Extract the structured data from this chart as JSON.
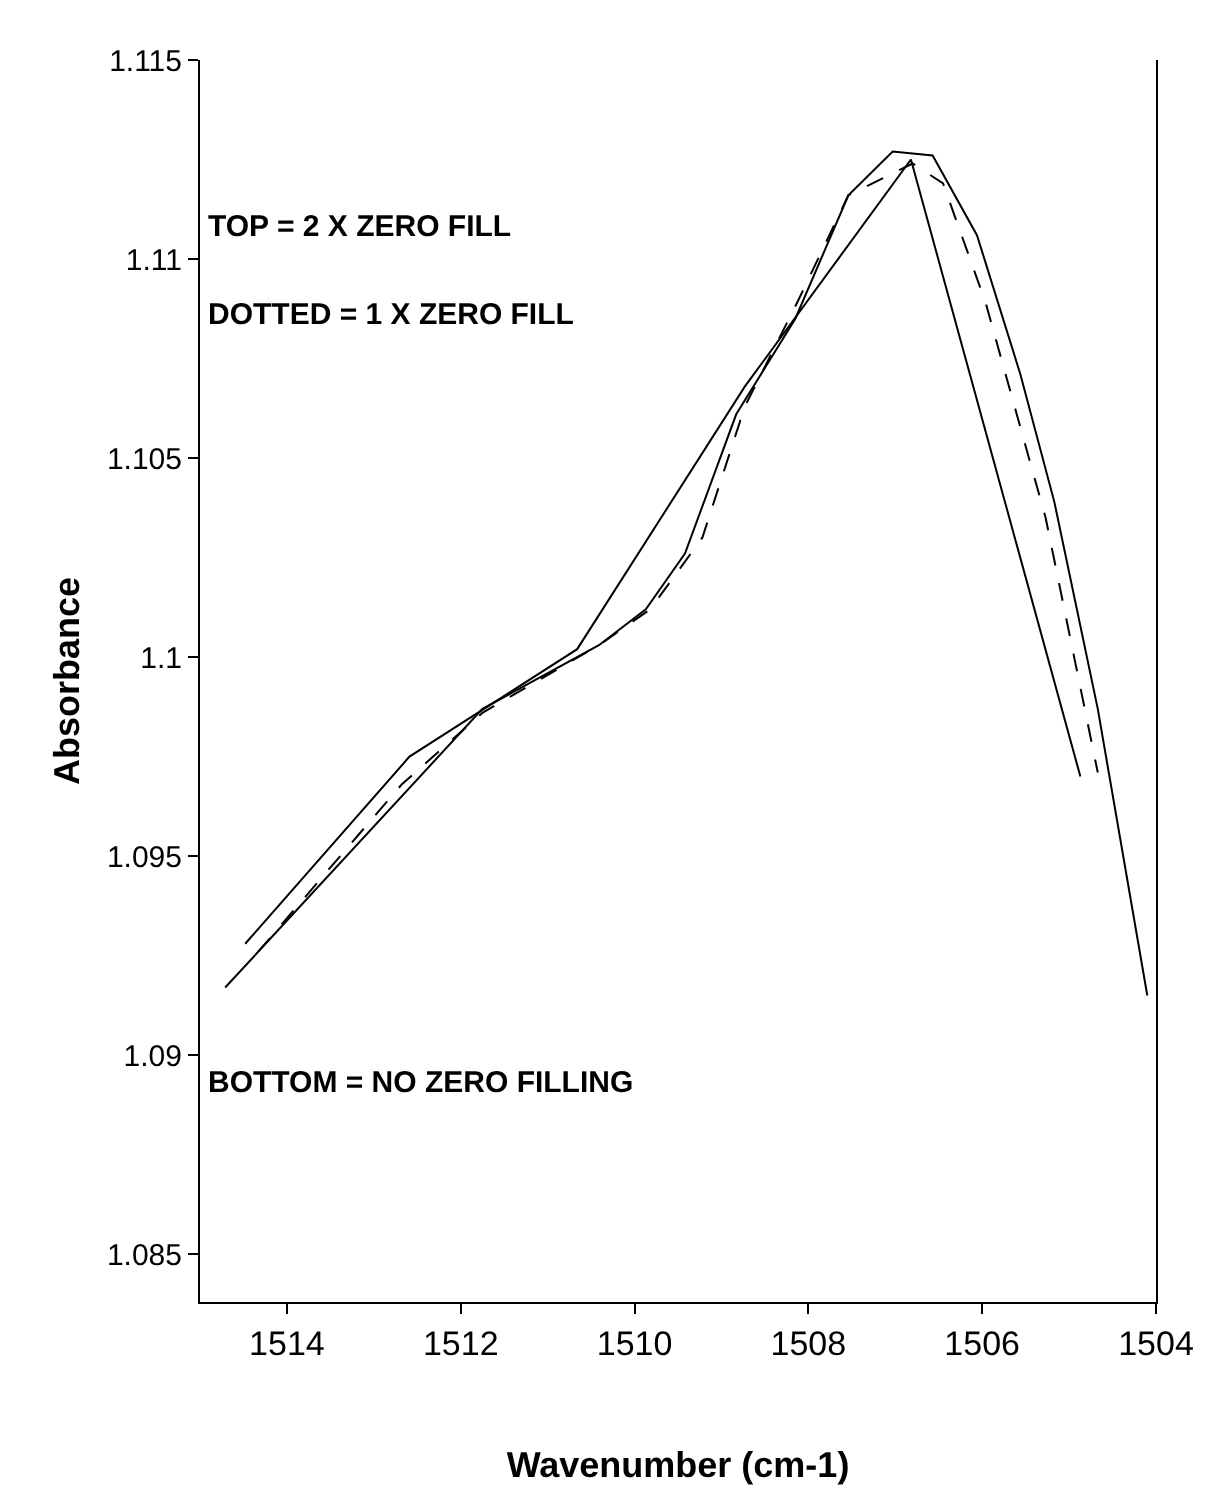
{
  "chart_data": {
    "type": "line",
    "xlabel": "Wavenumber (cm-1)",
    "ylabel": "Absorbance",
    "annotations": [
      "TOP = 2 X ZERO FILL",
      "DOTTED = 1 X ZERO FILL",
      "BOTTOM = NO ZERO FILLING"
    ],
    "series": [
      {
        "color": "#000000",
        "line_style": "solid",
        "x": [
          1514.71,
          1511.75,
          1510.41,
          1509.87,
          1509.42,
          1508.83,
          1508.15,
          1507.54,
          1507.03,
          1506.57,
          1506.06,
          1505.56,
          1505.17,
          1504.67,
          1504.1
        ],
        "values": [
          1.0917,
          1.0987,
          1.1003,
          1.1012,
          1.1026,
          1.1061,
          1.1085,
          1.1116,
          1.1127,
          1.1126,
          1.1106,
          1.1071,
          1.1039,
          1.0987,
          1.0915
        ]
      },
      {
        "color": "#000000",
        "line_style": "dashed",
        "x": [
          1514.33,
          1512.68,
          1511.75,
          1510.41,
          1509.82,
          1509.22,
          1508.73,
          1508.13,
          1507.54,
          1506.8,
          1506.45,
          1505.96,
          1505.27,
          1504.67
        ],
        "values": [
          1.0926,
          1.0968,
          1.0986,
          1.1003,
          1.1012,
          1.103,
          1.1063,
          1.1089,
          1.1116,
          1.1124,
          1.1119,
          1.1089,
          1.1035,
          1.0971
        ]
      },
      {
        "color": "#000000",
        "line_style": "solid",
        "x": [
          1514.48,
          1512.59,
          1510.66,
          1508.73,
          1506.82,
          1504.87
        ],
        "values": [
          1.0928,
          1.0975,
          1.1002,
          1.1068,
          1.1125,
          1.097
        ]
      }
    ],
    "xlim": [
      1515,
      1504
    ],
    "xticks": [
      1514,
      1512,
      1510,
      1508,
      1506,
      1504
    ],
    "ylim": [
      1.0838,
      1.115
    ],
    "yticks": [
      1.085,
      1.09,
      1.095,
      1.1,
      1.105,
      1.11,
      1.115
    ],
    "marker": "none"
  }
}
